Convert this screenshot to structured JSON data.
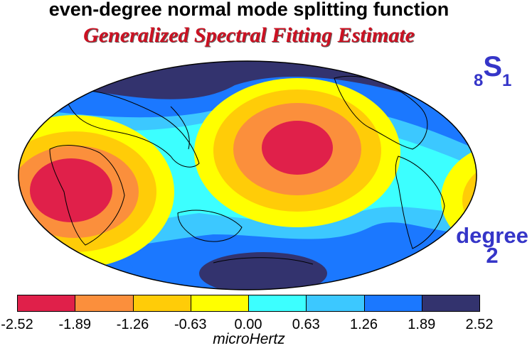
{
  "title": "even-degree normal mode splitting function",
  "subtitle": "Generalized Spectral Fitting Estimate",
  "mode": {
    "n": "8",
    "type": "S",
    "l": "1"
  },
  "degree_label": [
    "degree",
    "2"
  ],
  "colorbar": {
    "colors": [
      "#e0204a",
      "#fb8f3c",
      "#ffcc08",
      "#ffff00",
      "#3cffff",
      "#3cc8ff",
      "#1b78ff",
      "#33336e"
    ],
    "ticks": [
      "-2.52",
      "-1.89",
      "-1.26",
      "-0.63",
      "0.00",
      "0.63",
      "1.26",
      "1.89",
      "2.52"
    ],
    "unit": "microHertz"
  },
  "map": {
    "projection": "Hammer/Mollweide global, Pacific-centered",
    "field": "spherical harmonic degree 2 splitting function",
    "min_region": "central Pacific and Africa (red)",
    "max_region": "ring from Antarctica through Americas/Asia (dark blue)"
  }
}
